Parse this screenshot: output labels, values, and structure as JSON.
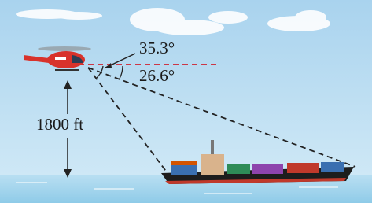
{
  "labels": {
    "angle_top": "35.3°",
    "angle_bottom": "26.6°",
    "height": "1800 ft"
  }
}
